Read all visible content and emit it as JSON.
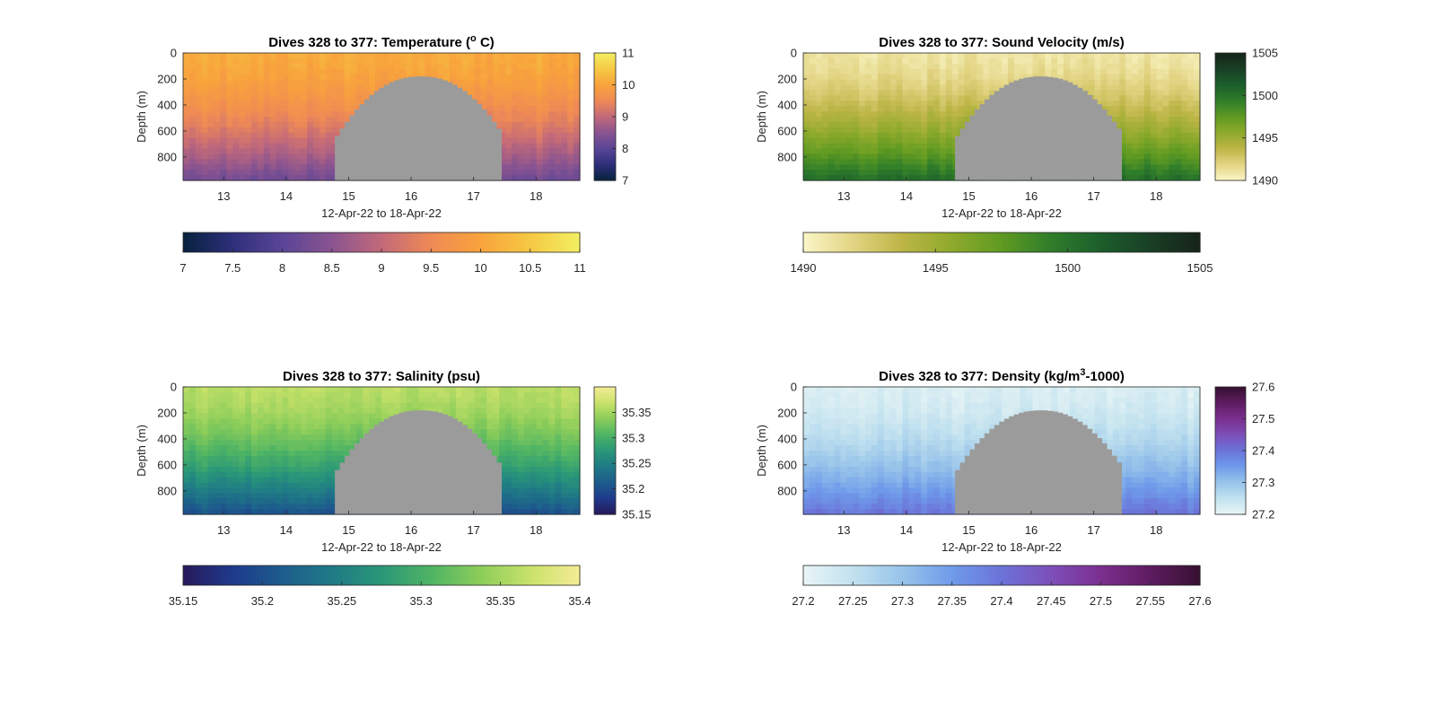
{
  "figure": {
    "subplots": [
      {
        "key": "temp",
        "title": "Dives 328 to 377: Temperature (",
        "title_sup": "o",
        "title_tail": " C)",
        "ylabel": "Depth (m)",
        "xlabel": "12-Apr-22 to 18-Apr-22",
        "yticks": [
          "0",
          "200",
          "400",
          "600",
          "800"
        ],
        "xticks": [
          "13",
          "14",
          "15",
          "16",
          "17",
          "18"
        ],
        "cbar_ticks": [
          "7",
          "8",
          "9",
          "10",
          "11"
        ],
        "hbar_ticks": [
          "7",
          "7.5",
          "8",
          "8.5",
          "9",
          "9.5",
          "10",
          "10.5",
          "11"
        ]
      },
      {
        "key": "sv",
        "title": "Dives 328 to 377: Sound Velocity (m/s)",
        "title_sup": "",
        "title_tail": "",
        "ylabel": "Depth (m)",
        "xlabel": "12-Apr-22 to 18-Apr-22",
        "yticks": [
          "0",
          "200",
          "400",
          "600",
          "800"
        ],
        "xticks": [
          "13",
          "14",
          "15",
          "16",
          "17",
          "18"
        ],
        "cbar_ticks": [
          "1490",
          "1495",
          "1500",
          "1505"
        ],
        "hbar_ticks": [
          "1490",
          "1495",
          "1500",
          "1505"
        ]
      },
      {
        "key": "sal",
        "title": "Dives 328 to 377: Salinity (psu)",
        "title_sup": "",
        "title_tail": "",
        "ylabel": "Depth (m)",
        "xlabel": "12-Apr-22 to 18-Apr-22",
        "yticks": [
          "0",
          "200",
          "400",
          "600",
          "800"
        ],
        "xticks": [
          "13",
          "14",
          "15",
          "16",
          "17",
          "18"
        ],
        "cbar_ticks": [
          "35.15",
          "35.2",
          "35.25",
          "35.3",
          "35.35"
        ],
        "hbar_ticks": [
          "35.15",
          "35.2",
          "35.25",
          "35.3",
          "35.35",
          "35.4"
        ]
      },
      {
        "key": "dens",
        "title": "Dives 328 to 377: Density (kg/m",
        "title_sup": "3",
        "title_tail": "-1000)",
        "ylabel": "Depth (m)",
        "xlabel": "12-Apr-22 to 18-Apr-22",
        "yticks": [
          "0",
          "200",
          "400",
          "600",
          "800"
        ],
        "xticks": [
          "13",
          "14",
          "15",
          "16",
          "17",
          "18"
        ],
        "cbar_ticks": [
          "27.2",
          "27.3",
          "27.4",
          "27.5",
          "27.6"
        ],
        "hbar_ticks": [
          "27.2",
          "27.25",
          "27.3",
          "27.35",
          "27.4",
          "27.45",
          "27.5",
          "27.55",
          "27.6"
        ]
      }
    ]
  },
  "chart_data": [
    {
      "type": "heatmap",
      "title": "Dives 328 to 377: Temperature (o C)",
      "xlabel": "12-Apr-22 to 18-Apr-22",
      "ylabel": "Depth (m)",
      "xlim": [
        12.35,
        18.7
      ],
      "ylim": [
        0,
        980
      ],
      "y_reversed": true,
      "clim": [
        7,
        11
      ],
      "colormap": [
        "#07223d",
        "#2e2f7a",
        "#5a4597",
        "#8a5490",
        "#c2697a",
        "#ef8a55",
        "#f8a33c",
        "#f6c944",
        "#f3ef62"
      ],
      "surface_value": 10.1,
      "bottom_value": 8.2,
      "gap_color": "#9b9b9b",
      "gap_x_range": [
        14.78,
        17.45
      ],
      "gap_top_depth_min": 180,
      "gap_top_depth_max": 640
    },
    {
      "type": "heatmap",
      "title": "Dives 328 to 377: Sound Velocity (m/s)",
      "xlabel": "12-Apr-22 to 18-Apr-22",
      "ylabel": "Depth (m)",
      "xlim": [
        12.35,
        18.7
      ],
      "ylim": [
        0,
        980
      ],
      "y_reversed": true,
      "clim": [
        1490,
        1505
      ],
      "colormap": [
        "#fbf6c7",
        "#e2d483",
        "#bcb546",
        "#8eaa2c",
        "#5f9a22",
        "#2f7d2a",
        "#1c5e2c",
        "#193f25",
        "#17231a"
      ],
      "surface_value": 1491,
      "bottom_value": 1500.5,
      "gap_color": "#9b9b9b",
      "gap_x_range": [
        14.78,
        17.45
      ],
      "gap_top_depth_min": 180,
      "gap_top_depth_max": 640
    },
    {
      "type": "heatmap",
      "title": "Dives 328 to 377: Salinity (psu)",
      "xlabel": "12-Apr-22 to 18-Apr-22",
      "ylabel": "Depth (m)",
      "xlim": [
        12.35,
        18.7
      ],
      "ylim": [
        0,
        980
      ],
      "y_reversed": true,
      "clim": [
        35.15,
        35.4
      ],
      "colormap": [
        "#271a5a",
        "#1f3a8c",
        "#1d5c8c",
        "#1f7a86",
        "#2a9778",
        "#4fb464",
        "#8ccd5a",
        "#c9e26a",
        "#f5ec95"
      ],
      "surface_value": 35.36,
      "bottom_value": 35.2,
      "gap_color": "#9b9b9b",
      "gap_x_range": [
        14.78,
        17.45
      ],
      "gap_top_depth_min": 180,
      "gap_top_depth_max": 640
    },
    {
      "type": "heatmap",
      "title": "Dives 328 to 377: Density (kg/m3-1000)",
      "xlabel": "12-Apr-22 to 18-Apr-22",
      "ylabel": "Depth (m)",
      "xlim": [
        12.35,
        18.7
      ],
      "ylim": [
        0,
        980
      ],
      "y_reversed": true,
      "clim": [
        27.2,
        27.6
      ],
      "colormap": [
        "#e9f5f5",
        "#c2e2ef",
        "#98c4ea",
        "#6f9bea",
        "#6b73d8",
        "#7d4fb8",
        "#7b2f8f",
        "#5e1c61",
        "#36102f"
      ],
      "surface_value": 27.22,
      "bottom_value": 27.4,
      "gap_color": "#9b9b9b",
      "gap_x_range": [
        14.78,
        17.45
      ],
      "gap_top_depth_min": 180,
      "gap_top_depth_max": 640
    }
  ]
}
